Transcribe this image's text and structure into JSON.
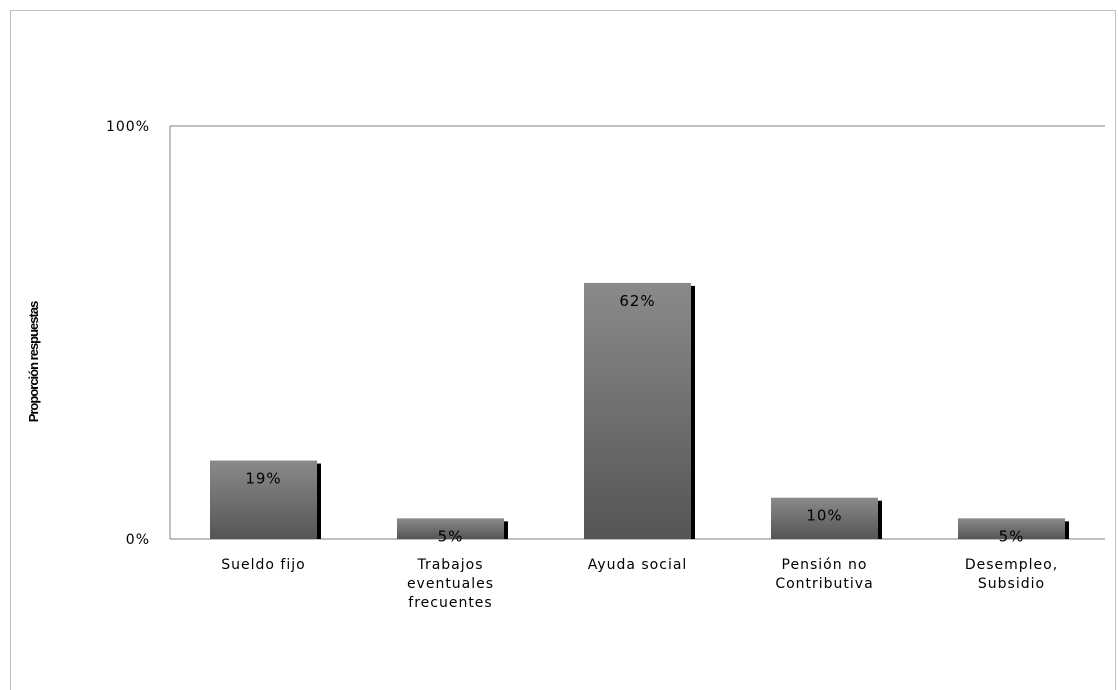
{
  "chart_data": {
    "type": "bar",
    "categories": [
      "Sueldo fijo",
      "Trabajos eventuales frecuentes",
      "Ayuda social",
      "Pensión no Contributiva",
      "Desempleo, Subsidio"
    ],
    "category_lines": [
      [
        "Sueldo fijo"
      ],
      [
        "Trabajos",
        "eventuales",
        "frecuentes"
      ],
      [
        "Ayuda social"
      ],
      [
        "Pensión no",
        "Contributiva"
      ],
      [
        "Desempleo,",
        "Subsidio"
      ]
    ],
    "values": [
      19,
      5,
      62,
      10,
      5
    ],
    "data_labels": [
      "19%",
      "5%",
      "62%",
      "10%",
      "5%"
    ],
    "ylabel": "Proporción respuestas",
    "xlabel": "",
    "ylim": [
      0,
      100
    ],
    "y_ticks": [
      {
        "value": 0,
        "label": "0%"
      },
      {
        "value": 100,
        "label": "100%"
      }
    ],
    "grid": false,
    "legend": "none",
    "colors": {
      "bar_top": "#8a8a8a",
      "bar_bottom": "#555555",
      "bar_shadow": "#000000",
      "axis": "#7f7f7f",
      "frame": "#bfbfbf"
    }
  }
}
